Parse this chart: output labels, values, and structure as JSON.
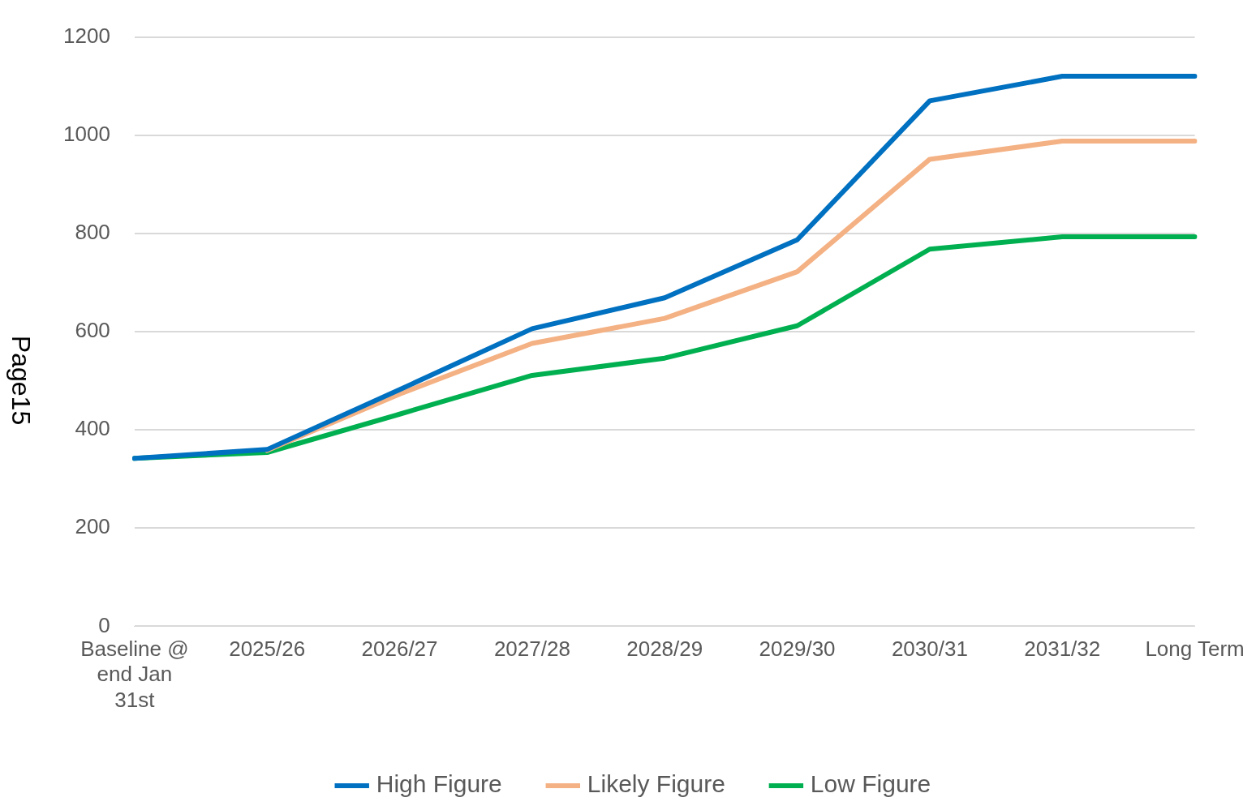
{
  "chart_data": {
    "type": "line",
    "categories": [
      "Baseline @ end Jan 31st",
      "2025/26",
      "2026/27",
      "2027/28",
      "2028/29",
      "2029/30",
      "2030/31",
      "2031/32",
      "Long Term"
    ],
    "series": [
      {
        "name": "High Figure",
        "color": "#0070c0",
        "values": [
          342,
          360,
          482,
          606,
          669,
          787,
          1070,
          1120,
          1120
        ]
      },
      {
        "name": "Likely Figure",
        "color": "#f4b183",
        "values": [
          null,
          358,
          473,
          576,
          627,
          722,
          951,
          988,
          988
        ]
      },
      {
        "name": "Low Figure",
        "color": "#00b050",
        "values": [
          342,
          354,
          432,
          511,
          546,
          612,
          768,
          793,
          793
        ]
      }
    ],
    "ylim": [
      0,
      1200
    ],
    "yticks": [
      0,
      200,
      400,
      600,
      800,
      1000,
      1200
    ],
    "grid": "y",
    "legend": "bottom",
    "marker": "none",
    "line_style": "solid",
    "annotations": [
      "Page15"
    ]
  }
}
